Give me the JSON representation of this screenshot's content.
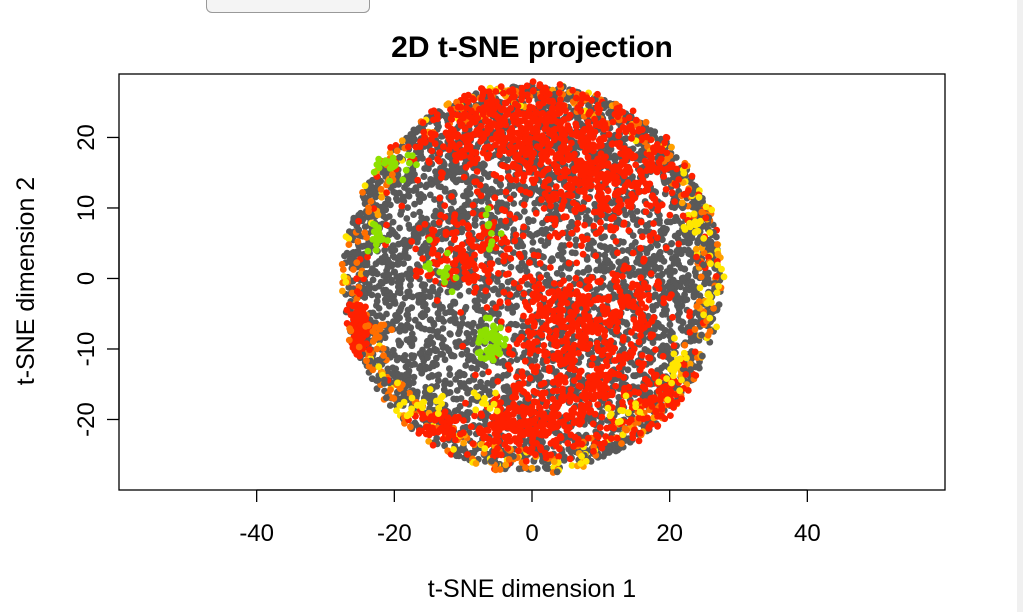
{
  "chart_data": {
    "type": "scatter",
    "title": "2D t-SNE projection",
    "xlabel": "t-SNE dimension 1",
    "ylabel": "t-SNE dimension 2",
    "xlim": [
      -60,
      60
    ],
    "ylim": [
      -30,
      29
    ],
    "xticks": [
      -40,
      -20,
      0,
      20,
      40
    ],
    "xtick_labels": [
      "-40",
      "-20",
      "0",
      "20",
      "40"
    ],
    "yticks": [
      -20,
      -10,
      0,
      10,
      20
    ],
    "ytick_labels": [
      "-20",
      "-10",
      "0",
      "10",
      "20"
    ],
    "grid": false,
    "legend": "none",
    "cloud": {
      "center": [
        0,
        0
      ],
      "radius": 28
    },
    "colors": {
      "gray": "#595959",
      "red": "#ff2000",
      "orange": "#ff6f00",
      "amber": "#ffa000",
      "yellow": "#ffe600",
      "green": "#8ee000"
    },
    "clusters": [
      {
        "color": "red",
        "x": -1,
        "y": 21,
        "sx": 8,
        "sy": 4,
        "n": 650
      },
      {
        "color": "red",
        "x": 10,
        "y": 13,
        "sx": 6,
        "sy": 4,
        "n": 350
      },
      {
        "color": "red",
        "x": 8,
        "y": -14,
        "sx": 6,
        "sy": 5,
        "n": 350
      },
      {
        "color": "red",
        "x": -1,
        "y": -21,
        "sx": 4,
        "sy": 2,
        "n": 220
      },
      {
        "color": "red",
        "x": 5,
        "y": -5,
        "sx": 5,
        "sy": 3,
        "n": 220
      },
      {
        "color": "red",
        "x": -9,
        "y": 4,
        "sx": 4,
        "sy": 3,
        "n": 160
      },
      {
        "color": "red",
        "x": -25,
        "y": -7,
        "sx": 0.8,
        "sy": 2,
        "n": 90
      },
      {
        "color": "red",
        "x": 19,
        "y": -18,
        "sx": 2.5,
        "sy": 2.5,
        "n": 90
      },
      {
        "color": "red",
        "x": 15,
        "y": -2,
        "sx": 2,
        "sy": 3,
        "n": 70
      },
      {
        "color": "red",
        "x": -14,
        "y": -21,
        "sx": 2,
        "sy": 1.5,
        "n": 60
      },
      {
        "color": "green",
        "x": -6,
        "y": -9,
        "sx": 1,
        "sy": 1.5,
        "n": 60
      },
      {
        "color": "green",
        "x": -20,
        "y": 16,
        "sx": 2,
        "sy": 0.8,
        "n": 25
      },
      {
        "color": "green",
        "x": -22,
        "y": 6,
        "sx": 0.8,
        "sy": 1.5,
        "n": 18
      },
      {
        "color": "green",
        "x": -13,
        "y": 1,
        "sx": 1.2,
        "sy": 1.5,
        "n": 14
      },
      {
        "color": "green",
        "x": -6,
        "y": 6,
        "sx": 0.6,
        "sy": 1.5,
        "n": 10
      },
      {
        "color": "yellow",
        "x": -16,
        "y": -18,
        "sx": 1.5,
        "sy": 1,
        "n": 22
      },
      {
        "color": "yellow",
        "x": 24,
        "y": 8,
        "sx": 1,
        "sy": 1.5,
        "n": 14
      },
      {
        "color": "yellow",
        "x": 26,
        "y": -2,
        "sx": 0.8,
        "sy": 2,
        "n": 14
      },
      {
        "color": "yellow",
        "x": 21,
        "y": -13,
        "sx": 1.5,
        "sy": 2,
        "n": 20
      },
      {
        "color": "yellow",
        "x": -7,
        "y": -17,
        "sx": 1,
        "sy": 1,
        "n": 10
      },
      {
        "color": "yellow",
        "x": 13,
        "y": -19,
        "sx": 1.5,
        "sy": 1,
        "n": 12
      },
      {
        "color": "orange",
        "x": -23,
        "y": -8,
        "sx": 1.5,
        "sy": 1.5,
        "n": 20
      }
    ],
    "rim_points": 650,
    "gray_points": 3800
  }
}
